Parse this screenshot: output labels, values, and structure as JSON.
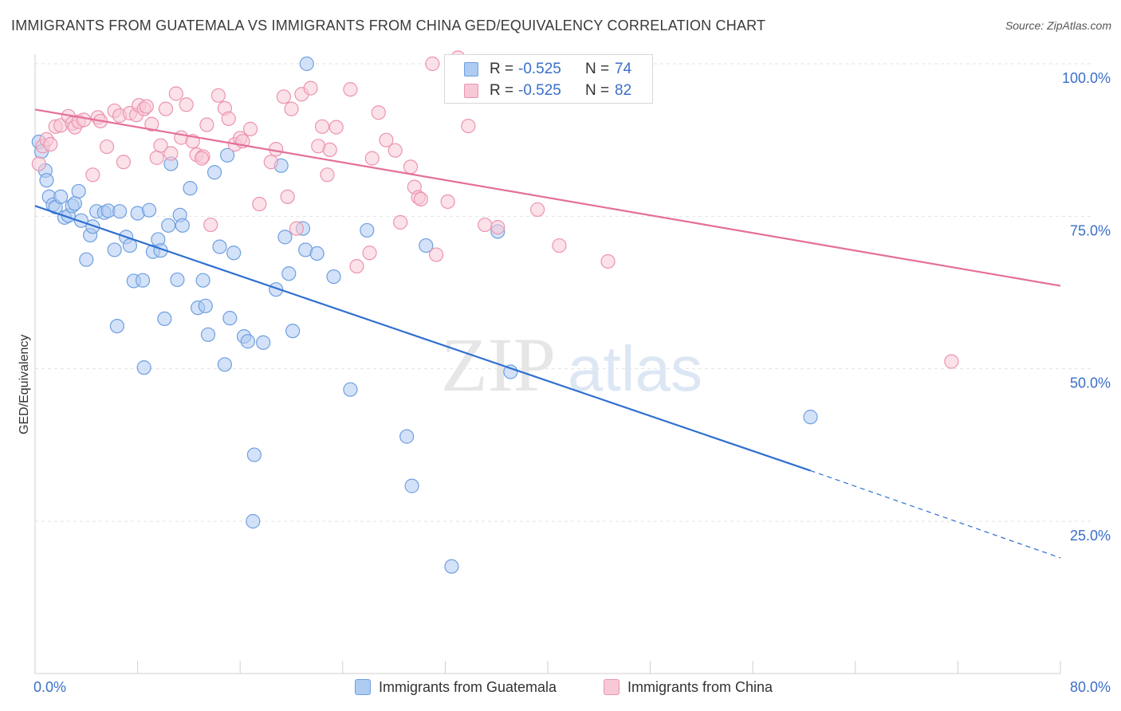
{
  "title": "IMMIGRANTS FROM GUATEMALA VS IMMIGRANTS FROM CHINA GED/EQUIVALENCY CORRELATION CHART",
  "source": "Source: ZipAtlas.com",
  "watermark": {
    "zip": "ZIP",
    "atlas": "atlas"
  },
  "legend": {
    "rows": [
      {
        "r_label": "R =",
        "r_value": "-0.525",
        "n_label": "N =",
        "n_value": "74",
        "color": "#aecbf2",
        "border": "#6f9fe0"
      },
      {
        "r_label": "R =",
        "r_value": "-0.525",
        "n_label": "N =",
        "n_value": "82",
        "color": "#f8c8d6",
        "border": "#ec94b0"
      }
    ]
  },
  "bottom_legend": [
    {
      "label": "Immigrants from Guatemala",
      "color": "#aecbf2",
      "border": "#6f9fe0"
    },
    {
      "label": "Immigrants from China",
      "color": "#f8c8d6",
      "border": "#ec94b0"
    }
  ],
  "chart_data": {
    "type": "scatter",
    "title": "IMMIGRANTS FROM GUATEMALA VS IMMIGRANTS FROM CHINA GED/EQUIVALENCY CORRELATION CHART",
    "xlabel": "",
    "ylabel": "GED/Equivalency",
    "xlim": [
      0,
      80
    ],
    "ylim": [
      5,
      105
    ],
    "x_tick_labels": [
      "0.0%",
      "80.0%"
    ],
    "y_ticks": [
      25,
      50,
      75,
      100
    ],
    "y_tick_labels": [
      "25.0%",
      "50.0%",
      "75.0%",
      "100.0%"
    ],
    "grid": true,
    "legend_position": "top-center",
    "series": [
      {
        "name": "Immigrants from Guatemala",
        "color": "#6f9fe0",
        "fill": "#aecbf2",
        "line_color": "#2f6fd0",
        "trend": {
          "x_start": 0,
          "y_start": 76.7,
          "x_end": 60.5,
          "y_end": 33.3,
          "dash_to_x": 80,
          "dash_to_y": 19.0
        },
        "points": [
          [
            0.3,
            87.2
          ],
          [
            0.5,
            85.6
          ],
          [
            0.8,
            82.5
          ],
          [
            0.9,
            80.9
          ],
          [
            1.1,
            78.2
          ],
          [
            1.4,
            76.9
          ],
          [
            1.6,
            76.5
          ],
          [
            2.0,
            78.2
          ],
          [
            2.3,
            74.8
          ],
          [
            2.6,
            75.1
          ],
          [
            2.9,
            76.7
          ],
          [
            3.1,
            77.1
          ],
          [
            3.4,
            79.1
          ],
          [
            3.6,
            74.3
          ],
          [
            4.0,
            67.9
          ],
          [
            4.3,
            71.9
          ],
          [
            4.5,
            73.3
          ],
          [
            4.8,
            75.8
          ],
          [
            5.4,
            75.6
          ],
          [
            5.7,
            75.9
          ],
          [
            6.2,
            69.5
          ],
          [
            6.4,
            57.0
          ],
          [
            6.6,
            75.8
          ],
          [
            7.1,
            71.6
          ],
          [
            7.4,
            70.2
          ],
          [
            7.7,
            64.4
          ],
          [
            8.0,
            75.5
          ],
          [
            8.4,
            64.5
          ],
          [
            8.5,
            50.2
          ],
          [
            8.9,
            76.0
          ],
          [
            9.2,
            69.2
          ],
          [
            9.6,
            71.2
          ],
          [
            9.8,
            69.4
          ],
          [
            10.1,
            58.2
          ],
          [
            10.4,
            73.5
          ],
          [
            10.6,
            83.6
          ],
          [
            11.1,
            64.6
          ],
          [
            11.3,
            75.2
          ],
          [
            11.5,
            73.5
          ],
          [
            12.1,
            79.6
          ],
          [
            12.7,
            60.0
          ],
          [
            13.1,
            64.5
          ],
          [
            13.3,
            60.3
          ],
          [
            13.5,
            55.6
          ],
          [
            14.0,
            82.2
          ],
          [
            14.4,
            70.0
          ],
          [
            14.8,
            50.7
          ],
          [
            15.0,
            85.0
          ],
          [
            15.2,
            58.3
          ],
          [
            15.5,
            69.0
          ],
          [
            16.3,
            55.3
          ],
          [
            16.6,
            54.5
          ],
          [
            17.1,
            35.9
          ],
          [
            17.0,
            25.0
          ],
          [
            17.8,
            54.3
          ],
          [
            18.8,
            63.0
          ],
          [
            19.2,
            83.3
          ],
          [
            19.5,
            71.6
          ],
          [
            19.8,
            65.6
          ],
          [
            20.1,
            56.2
          ],
          [
            20.9,
            73.0
          ],
          [
            21.1,
            69.5
          ],
          [
            21.2,
            100.0
          ],
          [
            22.0,
            68.9
          ],
          [
            23.3,
            65.1
          ],
          [
            24.6,
            46.6
          ],
          [
            25.9,
            72.7
          ],
          [
            29.0,
            38.9
          ],
          [
            29.4,
            30.8
          ],
          [
            30.5,
            70.2
          ],
          [
            32.5,
            17.6
          ],
          [
            36.1,
            72.5
          ],
          [
            37.1,
            49.5
          ],
          [
            60.5,
            42.1
          ]
        ]
      },
      {
        "name": "Immigrants from China",
        "color": "#ec94b0",
        "fill": "#f8c8d6",
        "line_color": "#e46f98",
        "trend": {
          "x_start": 0,
          "y_start": 92.5,
          "x_end": 80,
          "y_end": 63.6
        },
        "points": [
          [
            0.3,
            83.6
          ],
          [
            0.6,
            86.5
          ],
          [
            0.9,
            87.6
          ],
          [
            1.2,
            86.8
          ],
          [
            1.6,
            89.7
          ],
          [
            2.0,
            89.9
          ],
          [
            2.6,
            91.4
          ],
          [
            2.9,
            90.2
          ],
          [
            3.1,
            89.6
          ],
          [
            3.4,
            90.5
          ],
          [
            3.8,
            90.8
          ],
          [
            4.5,
            81.8
          ],
          [
            4.9,
            91.2
          ],
          [
            5.1,
            90.6
          ],
          [
            5.6,
            86.4
          ],
          [
            6.2,
            92.3
          ],
          [
            6.6,
            91.5
          ],
          [
            6.9,
            83.9
          ],
          [
            7.4,
            91.9
          ],
          [
            7.9,
            91.6
          ],
          [
            8.1,
            93.2
          ],
          [
            8.5,
            92.6
          ],
          [
            8.7,
            93.0
          ],
          [
            9.1,
            90.1
          ],
          [
            9.5,
            84.6
          ],
          [
            9.8,
            86.6
          ],
          [
            10.2,
            92.6
          ],
          [
            10.6,
            85.3
          ],
          [
            11.0,
            95.1
          ],
          [
            11.4,
            87.9
          ],
          [
            11.8,
            93.3
          ],
          [
            12.3,
            87.3
          ],
          [
            12.6,
            85.1
          ],
          [
            13.1,
            84.8
          ],
          [
            13.4,
            90.0
          ],
          [
            13.7,
            73.6
          ],
          [
            14.3,
            94.8
          ],
          [
            14.8,
            92.7
          ],
          [
            15.1,
            91.0
          ],
          [
            15.6,
            86.8
          ],
          [
            16.0,
            87.8
          ],
          [
            16.2,
            87.3
          ],
          [
            16.8,
            89.3
          ],
          [
            17.5,
            77.0
          ],
          [
            18.4,
            83.9
          ],
          [
            18.8,
            86.0
          ],
          [
            19.4,
            94.6
          ],
          [
            19.7,
            78.2
          ],
          [
            20.0,
            92.6
          ],
          [
            20.4,
            73.0
          ],
          [
            20.8,
            95.0
          ],
          [
            21.5,
            96.0
          ],
          [
            22.1,
            86.5
          ],
          [
            22.4,
            89.7
          ],
          [
            22.8,
            81.8
          ],
          [
            23.0,
            85.9
          ],
          [
            23.5,
            89.6
          ],
          [
            24.6,
            95.8
          ],
          [
            25.1,
            66.8
          ],
          [
            26.1,
            69.0
          ],
          [
            26.3,
            84.5
          ],
          [
            26.8,
            92.0
          ],
          [
            27.4,
            87.5
          ],
          [
            28.1,
            85.8
          ],
          [
            28.5,
            74.0
          ],
          [
            29.3,
            83.1
          ],
          [
            29.6,
            79.8
          ],
          [
            29.9,
            78.1
          ],
          [
            30.1,
            77.8
          ],
          [
            31.0,
            100.0
          ],
          [
            31.3,
            68.7
          ],
          [
            32.2,
            77.4
          ],
          [
            32.8,
            100.0
          ],
          [
            33.8,
            89.8
          ],
          [
            35.1,
            73.6
          ],
          [
            36.1,
            73.2
          ],
          [
            39.2,
            76.1
          ],
          [
            40.9,
            70.2
          ],
          [
            44.7,
            67.6
          ],
          [
            71.5,
            51.2
          ],
          [
            33.0,
            101.0
          ],
          [
            13.0,
            84.5
          ]
        ]
      }
    ]
  }
}
